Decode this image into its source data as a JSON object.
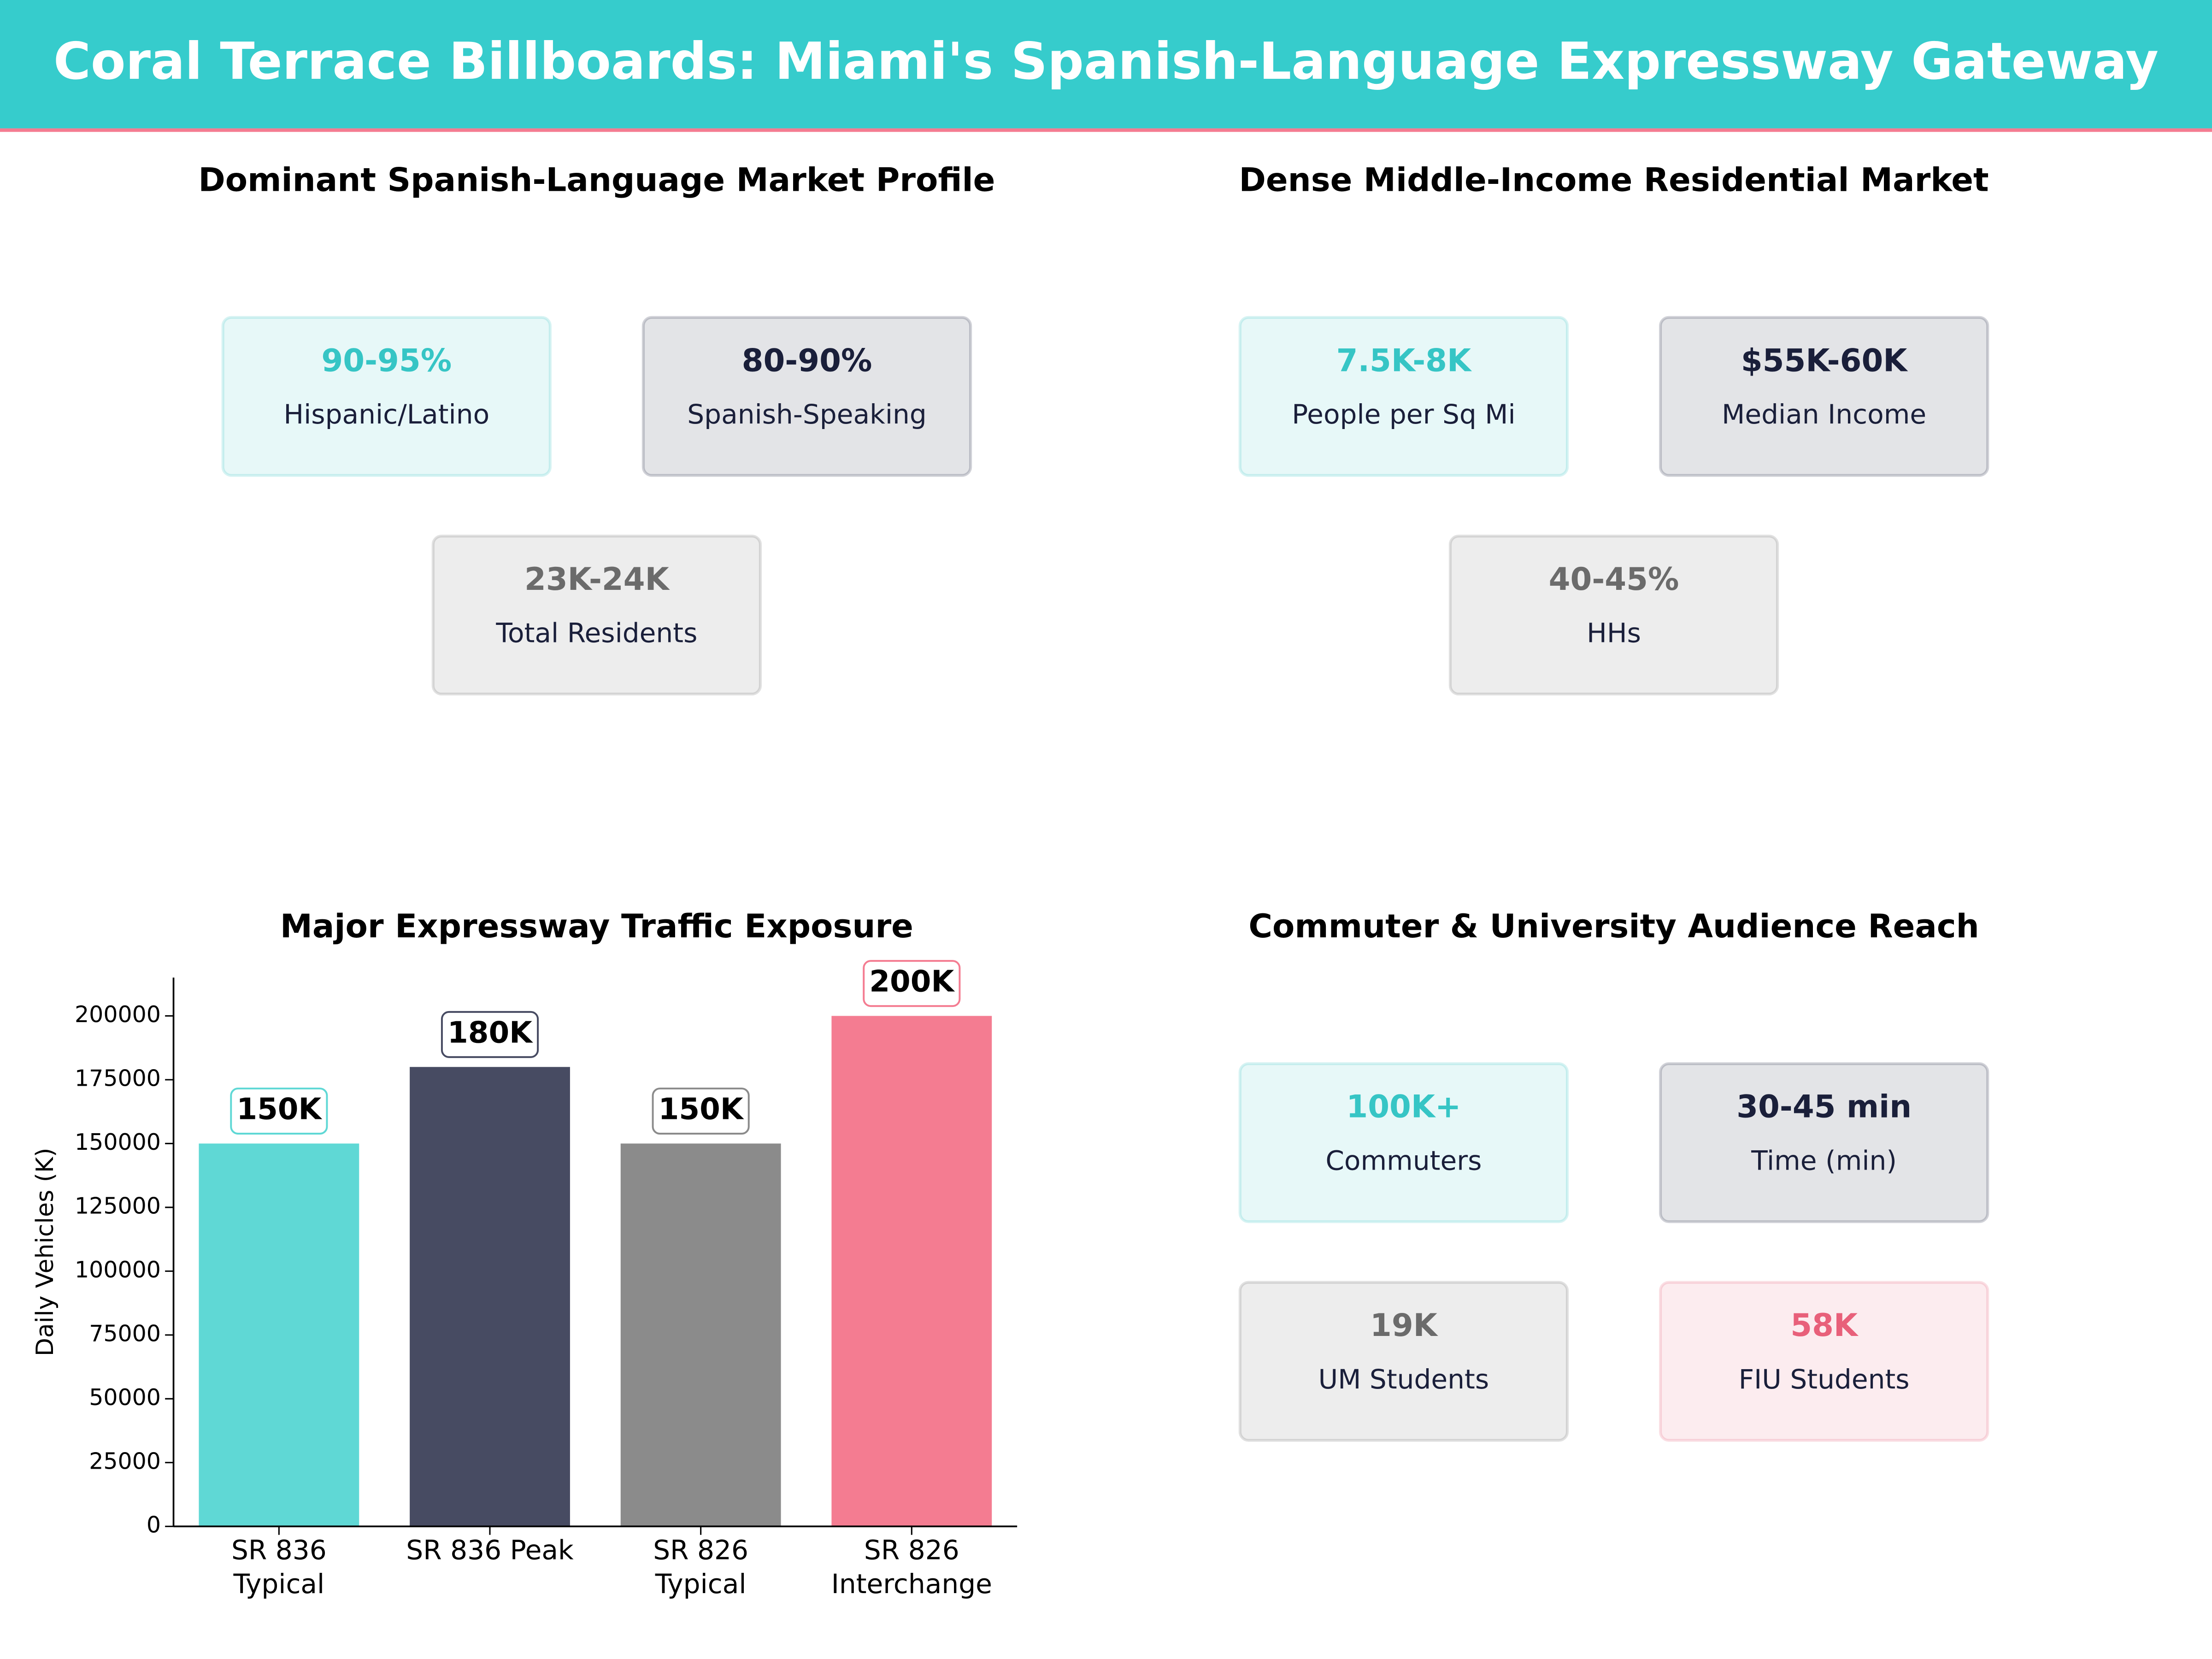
{
  "header": {
    "title": "Coral Terrace Billboards: Miami's Spanish-Language Expressway Gateway"
  },
  "panels": [
    {
      "title": "Dominant Spanish-Language Market Profile",
      "cards": [
        {
          "value": "90-95%",
          "label": "Hispanic/Latino",
          "color": "#36c5c5"
        },
        {
          "value": "80-90%",
          "label": "Spanish-Speaking",
          "color": "#1a1f3a"
        },
        {
          "value": "23K-24K",
          "label": "Total Residents",
          "color": "#6b6b6b"
        }
      ]
    },
    {
      "title": "Dense Middle-Income Residential Market",
      "cards": [
        {
          "value": "7.5K-8K",
          "label": "People per Sq Mi",
          "color": "#36c5c5"
        },
        {
          "value": "$55K-60K",
          "label": "Median Income",
          "color": "#1a1f3a"
        },
        {
          "value": "40-45%",
          "label": "HHs",
          "color": "#6b6b6b"
        }
      ]
    },
    {
      "title": "Commuter & University Audience Reach",
      "cards": [
        {
          "value": "100K+",
          "label": "Commuters",
          "color": "#36c5c5"
        },
        {
          "value": "30-45 min",
          "label": "Time (min)",
          "color": "#1a1f3a"
        },
        {
          "value": "19K",
          "label": "UM Students",
          "color": "#6b6b6b"
        },
        {
          "value": "58K",
          "label": "FIU Students",
          "color": "#e8607a"
        }
      ]
    }
  ],
  "chart_data": {
    "type": "bar",
    "title": "Major Expressway Traffic Exposure",
    "y_label": "Daily Vehicles (K)",
    "categories": [
      "SR 836\nTypical",
      "SR 836 Peak",
      "SR 826\nTypical",
      "SR 826\nInterchange"
    ],
    "values": [
      150000,
      180000,
      150000,
      200000
    ],
    "value_labels": [
      "150K",
      "180K",
      "150K",
      "200K"
    ],
    "colors": [
      "#5fd8d5",
      "#474b62",
      "#8b8b8b",
      "#f47c91"
    ],
    "ylim": [
      0,
      215000
    ],
    "yticks": [
      0,
      25000,
      50000,
      75000,
      100000,
      125000,
      150000,
      175000,
      200000
    ]
  }
}
